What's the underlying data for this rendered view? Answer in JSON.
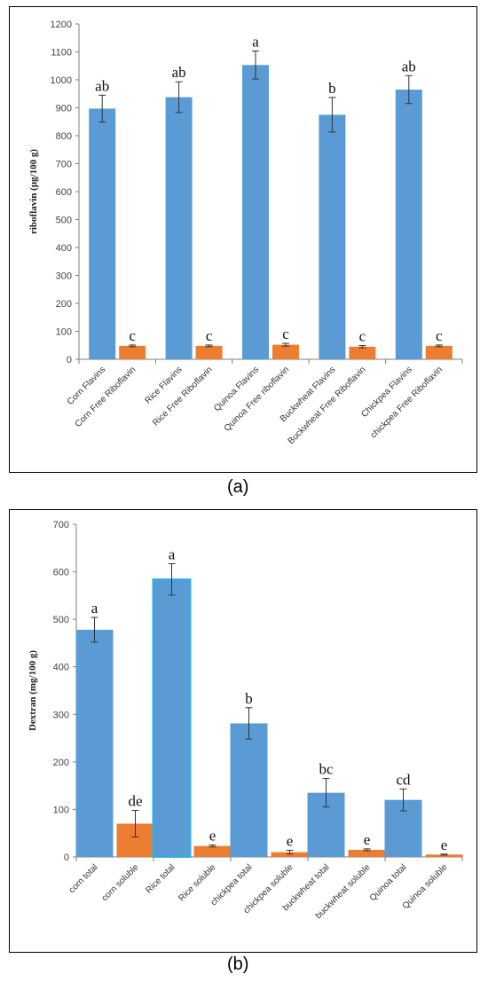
{
  "captions": {
    "a": "(a)",
    "b": "(b)"
  },
  "colors": {
    "primary": "#5b9bd5",
    "secondary": "#ed7d31",
    "highlight_border": "#2ab0e8",
    "axis": "#7f7f7f"
  },
  "chart_data": [
    {
      "type": "bar",
      "ylabel": "riboflavin (μg/100 g)",
      "xlabel": "",
      "ylim": [
        0,
        1200
      ],
      "ytick_step": 100,
      "grid": false,
      "legend": "none",
      "categories": [
        [
          "Corn Flavins",
          "Corn Free Riboflavin"
        ],
        [
          "Rice  Flavins",
          "Rice Free  Riboflavin"
        ],
        [
          "Quinoa Flavins",
          "Quinoa Free riboflavin"
        ],
        [
          "Buckwheat Flavins",
          "Buckwheat Free Riboflavin"
        ],
        [
          "Chickpea Flavins",
          "chickpea Free Riboflavin"
        ]
      ],
      "series": [
        {
          "values": [
            897,
            938,
            1053,
            875,
            965
          ],
          "errors": [
            48,
            55,
            50,
            62,
            50
          ],
          "labels": [
            "ab",
            "ab",
            "a",
            "b",
            "ab"
          ]
        },
        {
          "values": [
            48,
            48,
            52,
            45,
            48
          ],
          "errors": [
            3,
            3,
            5,
            4,
            3
          ],
          "labels": [
            "c",
            "c",
            "c",
            "c",
            "c"
          ]
        }
      ]
    },
    {
      "type": "bar",
      "ylabel": "Dextran (mg/100 g)",
      "xlabel": "",
      "ylim": [
        0,
        700
      ],
      "ytick_step": 100,
      "grid": false,
      "legend": "none",
      "categories": [
        [
          "corn total",
          "corn soluble"
        ],
        [
          "Rice  total",
          "Rice soluble"
        ],
        [
          "chickpea total",
          "chickpea soluble"
        ],
        [
          "buckwheat total",
          "buckwheat  soluble"
        ],
        [
          "Quinoa total",
          "Quinoa soluble"
        ]
      ],
      "series": [
        {
          "values": [
            478,
            584,
            281,
            135,
            120
          ],
          "errors": [
            26,
            33,
            33,
            30,
            23
          ],
          "labels": [
            "a",
            "a",
            "b",
            "bc",
            "cd"
          ]
        },
        {
          "values": [
            70,
            23,
            10,
            15,
            5
          ],
          "errors": [
            28,
            2,
            4,
            2,
            1
          ],
          "labels": [
            "de",
            "e",
            "e",
            "e",
            "e"
          ]
        }
      ]
    }
  ]
}
